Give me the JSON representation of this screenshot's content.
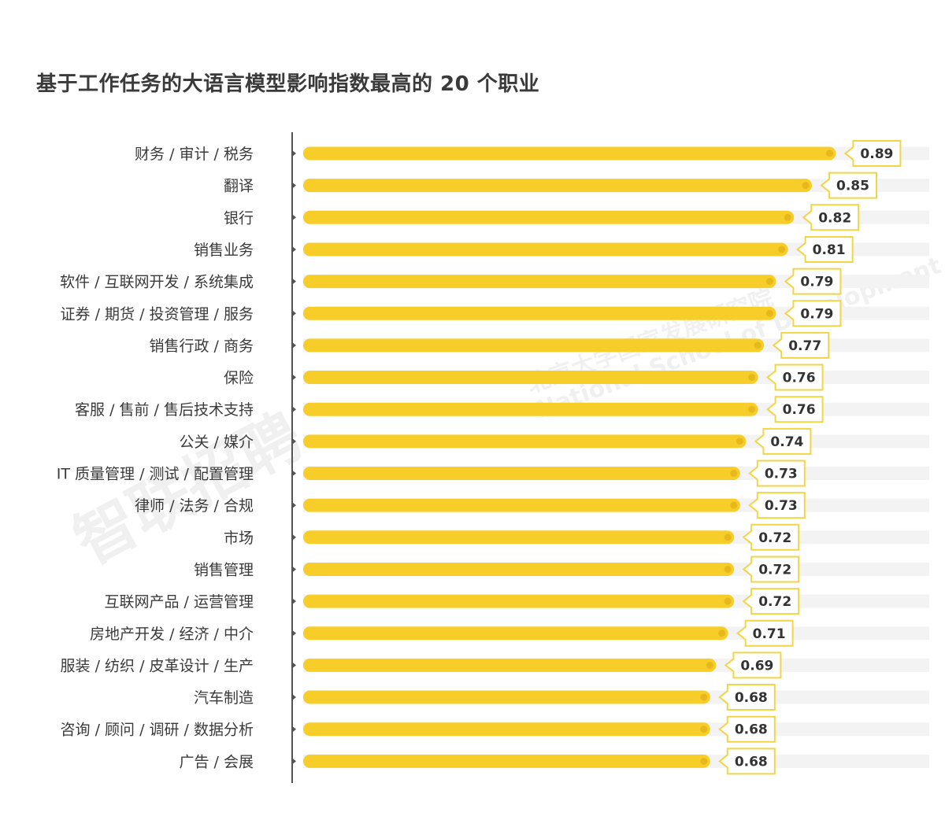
{
  "chart_data": {
    "type": "bar",
    "orientation": "horizontal",
    "title": "基于工作任务的大语言模型影响指数最高的 20 个职业",
    "categories": [
      "财务 / 审计 / 税务",
      "翻译",
      "银行",
      "销售业务",
      "软件 / 互联网开发 / 系统集成",
      "证券 / 期货 / 投资管理 / 服务",
      "销售行政 / 商务",
      "保险",
      "客服 / 售前 / 售后技术支持",
      "公关 / 媒介",
      "IT 质量管理 / 测试 / 配置管理",
      "律师 / 法务 / 合规",
      "市场",
      "销售管理",
      "互联网产品 / 运营管理",
      "房地产开发 / 经济 / 中介",
      "服装 / 纺织 / 皮革设计 / 生产",
      "汽车制造",
      "咨询 / 顾问 / 调研 / 数据分析",
      "广告 / 会展"
    ],
    "values": [
      0.89,
      0.85,
      0.82,
      0.81,
      0.79,
      0.79,
      0.77,
      0.76,
      0.76,
      0.74,
      0.73,
      0.73,
      0.72,
      0.72,
      0.72,
      0.71,
      0.69,
      0.68,
      0.68,
      0.68
    ],
    "value_labels": [
      "0.89",
      "0.85",
      "0.82",
      "0.81",
      "0.79",
      "0.79",
      "0.77",
      "0.76",
      "0.76",
      "0.74",
      "0.73",
      "0.73",
      "0.72",
      "0.72",
      "0.72",
      "0.71",
      "0.69",
      "0.68",
      "0.68",
      "0.68"
    ],
    "xlim": [
      0,
      1
    ],
    "grid": false,
    "legend": "none",
    "colors": {
      "bar": "#f7cd2a",
      "bar_dot": "#e6b81c",
      "track": "#f3f3f3",
      "label_border": "#f2d547",
      "axis": "#555555",
      "text": "#3a3a3a"
    }
  },
  "watermarks": {
    "brand": "智联招聘",
    "institute_cn": "北京大学国家发展研究院",
    "institute_en": "National School of Development"
  }
}
